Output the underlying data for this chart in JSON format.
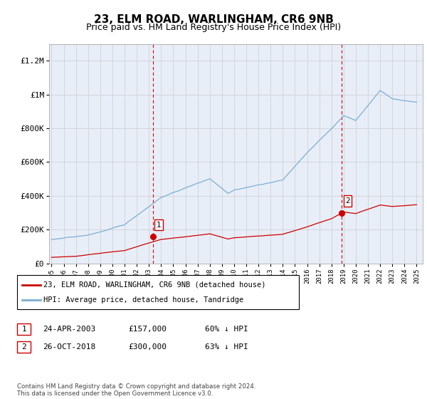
{
  "title": "23, ELM ROAD, WARLINGHAM, CR6 9NB",
  "subtitle": "Price paid vs. HM Land Registry's House Price Index (HPI)",
  "ylabel_ticks": [
    "£0",
    "£200K",
    "£400K",
    "£600K",
    "£800K",
    "£1M",
    "£1.2M"
  ],
  "ylabel_values": [
    0,
    200000,
    400000,
    600000,
    800000,
    1000000,
    1200000
  ],
  "ylim": [
    0,
    1300000
  ],
  "xlim_start": 1994.8,
  "xlim_end": 2025.5,
  "hpi_color": "#7bafd4",
  "price_color": "#cc0000",
  "sale1_date": 2003.31,
  "sale1_price": 157000,
  "sale2_date": 2018.83,
  "sale2_price": 300000,
  "vline_color": "#cc0000",
  "grid_color": "#cccccc",
  "background_color": "#e8eef8",
  "legend_line1": "23, ELM ROAD, WARLINGHAM, CR6 9NB (detached house)",
  "legend_line2": "HPI: Average price, detached house, Tandridge",
  "table_row1": [
    "1",
    "24-APR-2003",
    "£157,000",
    "60% ↓ HPI"
  ],
  "table_row2": [
    "2",
    "26-OCT-2018",
    "£300,000",
    "63% ↓ HPI"
  ],
  "footnote": "Contains HM Land Registry data © Crown copyright and database right 2024.\nThis data is licensed under the Open Government Licence v3.0.",
  "title_fontsize": 11,
  "subtitle_fontsize": 9
}
